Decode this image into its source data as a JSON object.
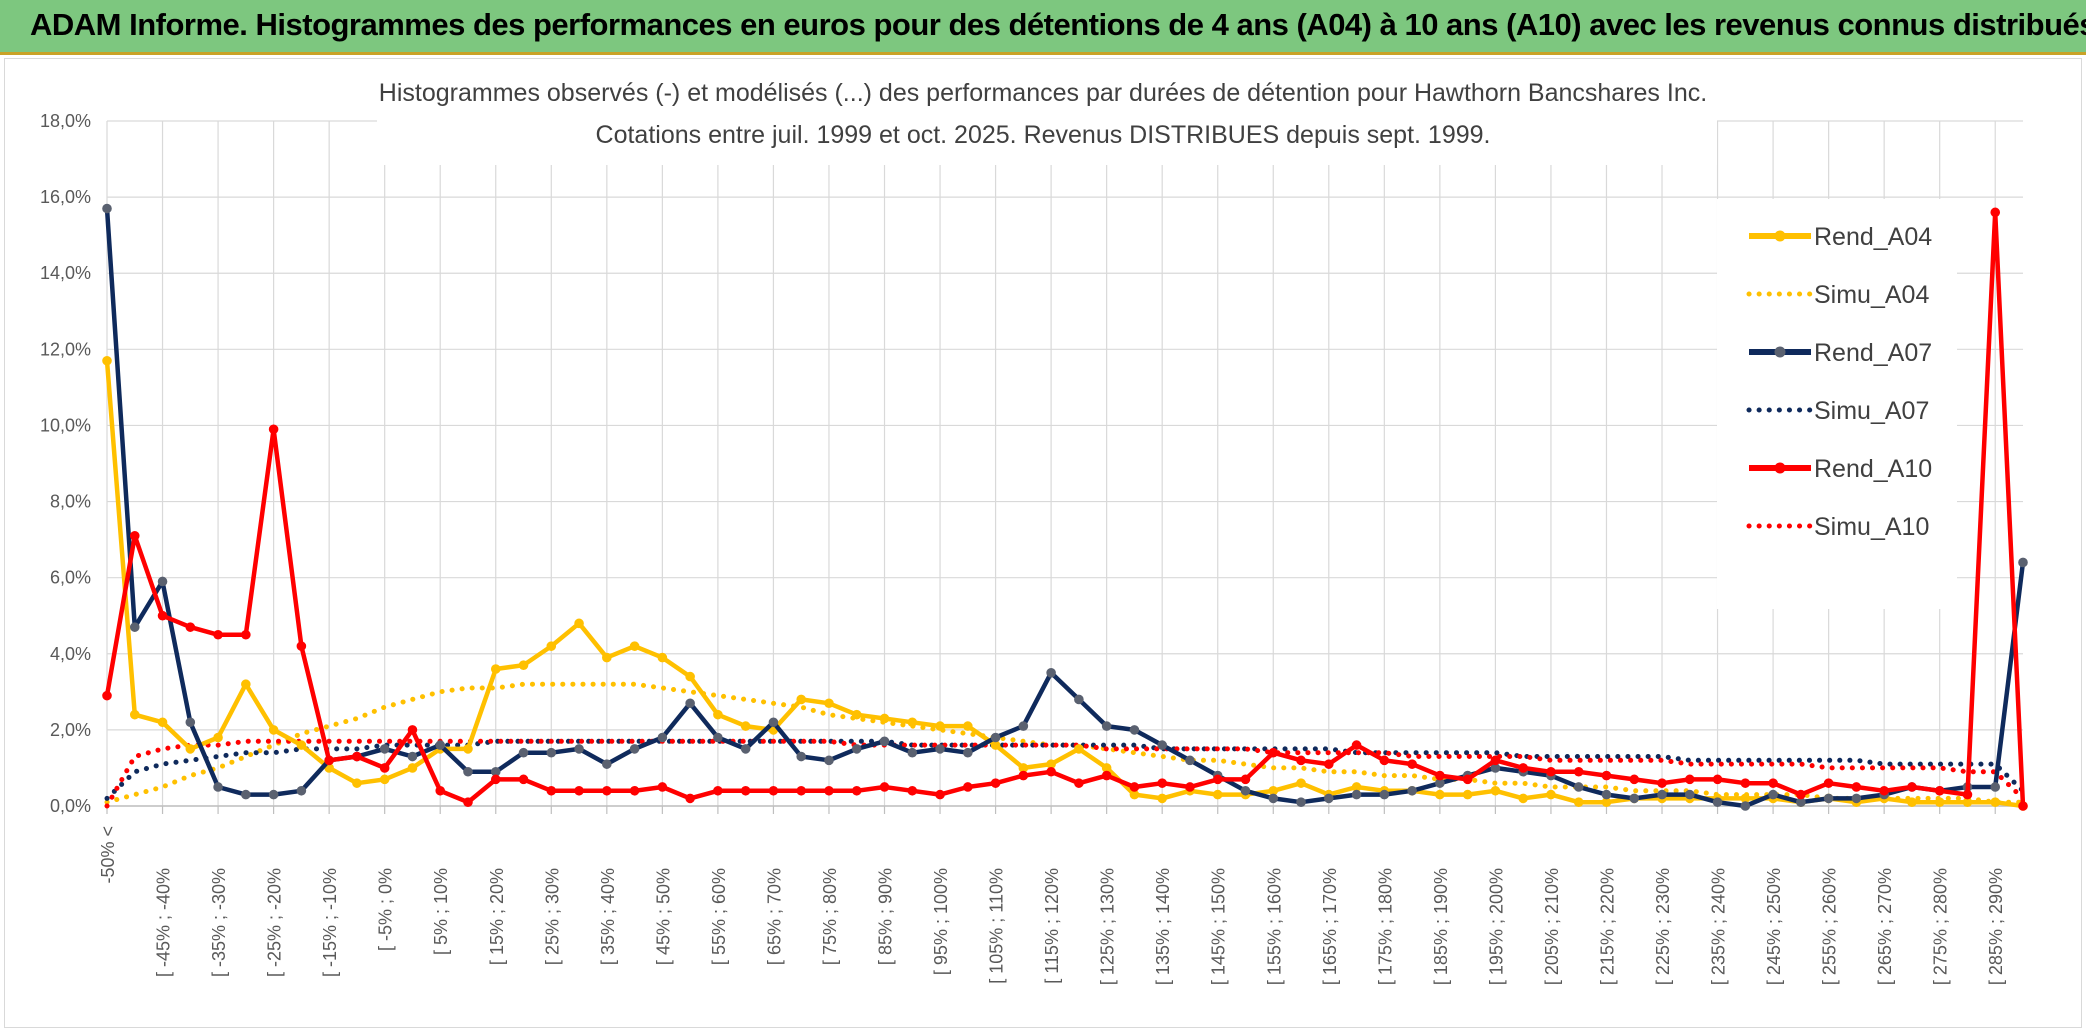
{
  "banner": {
    "title": "ADAM Informe. Histogrammes des performances en euros pour des détentions de 4 ans (A04) à 10 ans (A10) avec les revenus connus distribués"
  },
  "colors": {
    "banner_bg": "#7dc77f",
    "A04": "#ffc000",
    "A07": "#0f2a5c",
    "A07_marker": "#5a6170",
    "A10": "#ff0000",
    "grid": "#d9d9d9"
  },
  "chart_data": {
    "type": "line",
    "title": "Histogrammes observés (-) et modélisés (...) des performances par durées de détention pour Hawthorn Bancshares Inc.",
    "subtitle": "Cotations entre juil. 1999 et oct. 2025. Revenus DISTRIBUES depuis sept. 1999.",
    "xlabel": "",
    "ylabel": "",
    "ylim": [
      0,
      18
    ],
    "y_ticks": [
      "0,0%",
      "2,0%",
      "4,0%",
      "6,0%",
      "8,0%",
      "10,0%",
      "12,0%",
      "14,0%",
      "16,0%",
      "18,0%"
    ],
    "grid": true,
    "legend_position": "top-right",
    "x_tick_labels": [
      "-50% <",
      "[ -45% ; -40%",
      "[ -35% ; -30%",
      "[ -25% ; -20%",
      "[ -15% ; -10%",
      "[ -5% ; 0%",
      "[ 5% ; 10%",
      "[ 15% ; 20%",
      "[ 25% ; 30%",
      "[ 35% ; 40%",
      "[ 45% ; 50%",
      "[ 55% ; 60%",
      "[ 65% ; 70%",
      "[ 75% ; 80%",
      "[ 85% ; 90%",
      "[ 95% ; 100%",
      "[ 105% ; 110%",
      "[ 115% ; 120%",
      "[ 125% ; 130%",
      "[ 135% ; 140%",
      "[ 145% ; 150%",
      "[ 155% ; 160%",
      "[ 165% ; 170%",
      "[ 175% ; 180%",
      "[ 185% ; 190%",
      "[ 195% ; 200%",
      "[ 205% ; 210%",
      "[ 215% ; 220%",
      "[ 225% ; 230%",
      "[ 235% ; 240%",
      "[ 245% ; 250%",
      "[ 255% ; 260%",
      "[ 265% ; 270%",
      "[ 275% ; 280%",
      "[ 285% ; 290%"
    ],
    "num_points": 70,
    "series": [
      {
        "name": "Rend_A04",
        "style": "solid",
        "color": "#ffc000",
        "values": [
          11.7,
          2.4,
          2.2,
          1.5,
          1.8,
          3.2,
          2.0,
          1.6,
          1.0,
          0.6,
          0.7,
          1.0,
          1.5,
          1.5,
          3.6,
          3.7,
          4.2,
          4.8,
          3.9,
          4.2,
          3.9,
          3.4,
          2.4,
          2.1,
          2.0,
          2.8,
          2.7,
          2.4,
          2.3,
          2.2,
          2.1,
          2.1,
          1.6,
          1.0,
          1.1,
          1.5,
          1.0,
          0.3,
          0.2,
          0.4,
          0.3,
          0.3,
          0.4,
          0.6,
          0.3,
          0.5,
          0.4,
          0.4,
          0.3,
          0.3,
          0.4,
          0.2,
          0.3,
          0.1,
          0.1,
          0.2,
          0.2,
          0.2,
          0.2,
          0.2,
          0.2,
          0.1,
          0.2,
          0.1,
          0.2,
          0.1,
          0.1,
          0.1,
          0.1,
          0.0
        ]
      },
      {
        "name": "Simu_A04",
        "style": "dotted",
        "color": "#ffc000",
        "values": [
          0.1,
          0.3,
          0.5,
          0.8,
          1.0,
          1.3,
          1.6,
          1.9,
          2.1,
          2.3,
          2.6,
          2.8,
          3.0,
          3.1,
          3.1,
          3.2,
          3.2,
          3.2,
          3.2,
          3.2,
          3.1,
          3.0,
          2.9,
          2.8,
          2.7,
          2.6,
          2.4,
          2.3,
          2.2,
          2.1,
          2.0,
          1.9,
          1.8,
          1.7,
          1.6,
          1.6,
          1.5,
          1.4,
          1.3,
          1.2,
          1.2,
          1.1,
          1.0,
          1.0,
          0.9,
          0.9,
          0.8,
          0.8,
          0.7,
          0.7,
          0.6,
          0.6,
          0.5,
          0.5,
          0.5,
          0.4,
          0.4,
          0.4,
          0.3,
          0.3,
          0.3,
          0.3,
          0.2,
          0.2,
          0.2,
          0.2,
          0.2,
          0.2,
          0.1,
          0.1
        ]
      },
      {
        "name": "Rend_A07",
        "style": "solid",
        "color": "#0f2a5c",
        "values": [
          15.7,
          4.7,
          5.9,
          2.2,
          0.5,
          0.3,
          0.3,
          0.4,
          1.2,
          1.3,
          1.5,
          1.3,
          1.6,
          0.9,
          0.9,
          1.4,
          1.4,
          1.5,
          1.1,
          1.5,
          1.8,
          2.7,
          1.8,
          1.5,
          2.2,
          1.3,
          1.2,
          1.5,
          1.7,
          1.4,
          1.5,
          1.4,
          1.8,
          2.1,
          3.5,
          2.8,
          2.1,
          2.0,
          1.6,
          1.2,
          0.8,
          0.4,
          0.2,
          0.1,
          0.2,
          0.3,
          0.3,
          0.4,
          0.6,
          0.8,
          1.0,
          0.9,
          0.8,
          0.5,
          0.3,
          0.2,
          0.3,
          0.3,
          0.1,
          0.0,
          0.3,
          0.1,
          0.2,
          0.2,
          0.3,
          0.5,
          0.4,
          0.5,
          0.5,
          6.4
        ]
      },
      {
        "name": "Simu_A07",
        "style": "dotted",
        "color": "#0f2a5c",
        "values": [
          0.2,
          0.9,
          1.1,
          1.2,
          1.3,
          1.4,
          1.4,
          1.5,
          1.5,
          1.5,
          1.6,
          1.6,
          1.6,
          1.6,
          1.7,
          1.7,
          1.7,
          1.7,
          1.7,
          1.7,
          1.7,
          1.7,
          1.7,
          1.7,
          1.7,
          1.7,
          1.7,
          1.7,
          1.7,
          1.6,
          1.6,
          1.6,
          1.6,
          1.6,
          1.6,
          1.6,
          1.6,
          1.6,
          1.5,
          1.5,
          1.5,
          1.5,
          1.5,
          1.5,
          1.5,
          1.4,
          1.4,
          1.4,
          1.4,
          1.4,
          1.4,
          1.3,
          1.3,
          1.3,
          1.3,
          1.3,
          1.3,
          1.2,
          1.2,
          1.2,
          1.2,
          1.2,
          1.2,
          1.2,
          1.1,
          1.1,
          1.1,
          1.1,
          1.1,
          0.4
        ]
      },
      {
        "name": "Rend_A10",
        "style": "solid",
        "color": "#ff0000",
        "values": [
          2.9,
          7.1,
          5.0,
          4.7,
          4.5,
          4.5,
          9.9,
          4.2,
          1.2,
          1.3,
          1.0,
          2.0,
          0.4,
          0.1,
          0.7,
          0.7,
          0.4,
          0.4,
          0.4,
          0.4,
          0.5,
          0.2,
          0.4,
          0.4,
          0.4,
          0.4,
          0.4,
          0.4,
          0.5,
          0.4,
          0.3,
          0.5,
          0.6,
          0.8,
          0.9,
          0.6,
          0.8,
          0.5,
          0.6,
          0.5,
          0.7,
          0.7,
          1.4,
          1.2,
          1.1,
          1.6,
          1.2,
          1.1,
          0.8,
          0.7,
          1.2,
          1.0,
          0.9,
          0.9,
          0.8,
          0.7,
          0.6,
          0.7,
          0.7,
          0.6,
          0.6,
          0.3,
          0.6,
          0.5,
          0.4,
          0.5,
          0.4,
          0.3,
          15.6,
          0.0
        ]
      },
      {
        "name": "Simu_A10",
        "style": "dotted",
        "color": "#ff0000",
        "values": [
          0.0,
          1.3,
          1.5,
          1.6,
          1.6,
          1.7,
          1.7,
          1.7,
          1.7,
          1.7,
          1.7,
          1.7,
          1.7,
          1.7,
          1.7,
          1.7,
          1.7,
          1.7,
          1.7,
          1.7,
          1.7,
          1.7,
          1.7,
          1.7,
          1.7,
          1.7,
          1.7,
          1.6,
          1.6,
          1.6,
          1.6,
          1.6,
          1.6,
          1.6,
          1.6,
          1.6,
          1.5,
          1.5,
          1.5,
          1.5,
          1.5,
          1.5,
          1.4,
          1.4,
          1.4,
          1.4,
          1.4,
          1.3,
          1.3,
          1.3,
          1.3,
          1.3,
          1.2,
          1.2,
          1.2,
          1.2,
          1.2,
          1.1,
          1.1,
          1.1,
          1.1,
          1.1,
          1.0,
          1.0,
          1.0,
          1.0,
          1.0,
          0.9,
          0.9,
          0.2
        ]
      }
    ]
  }
}
